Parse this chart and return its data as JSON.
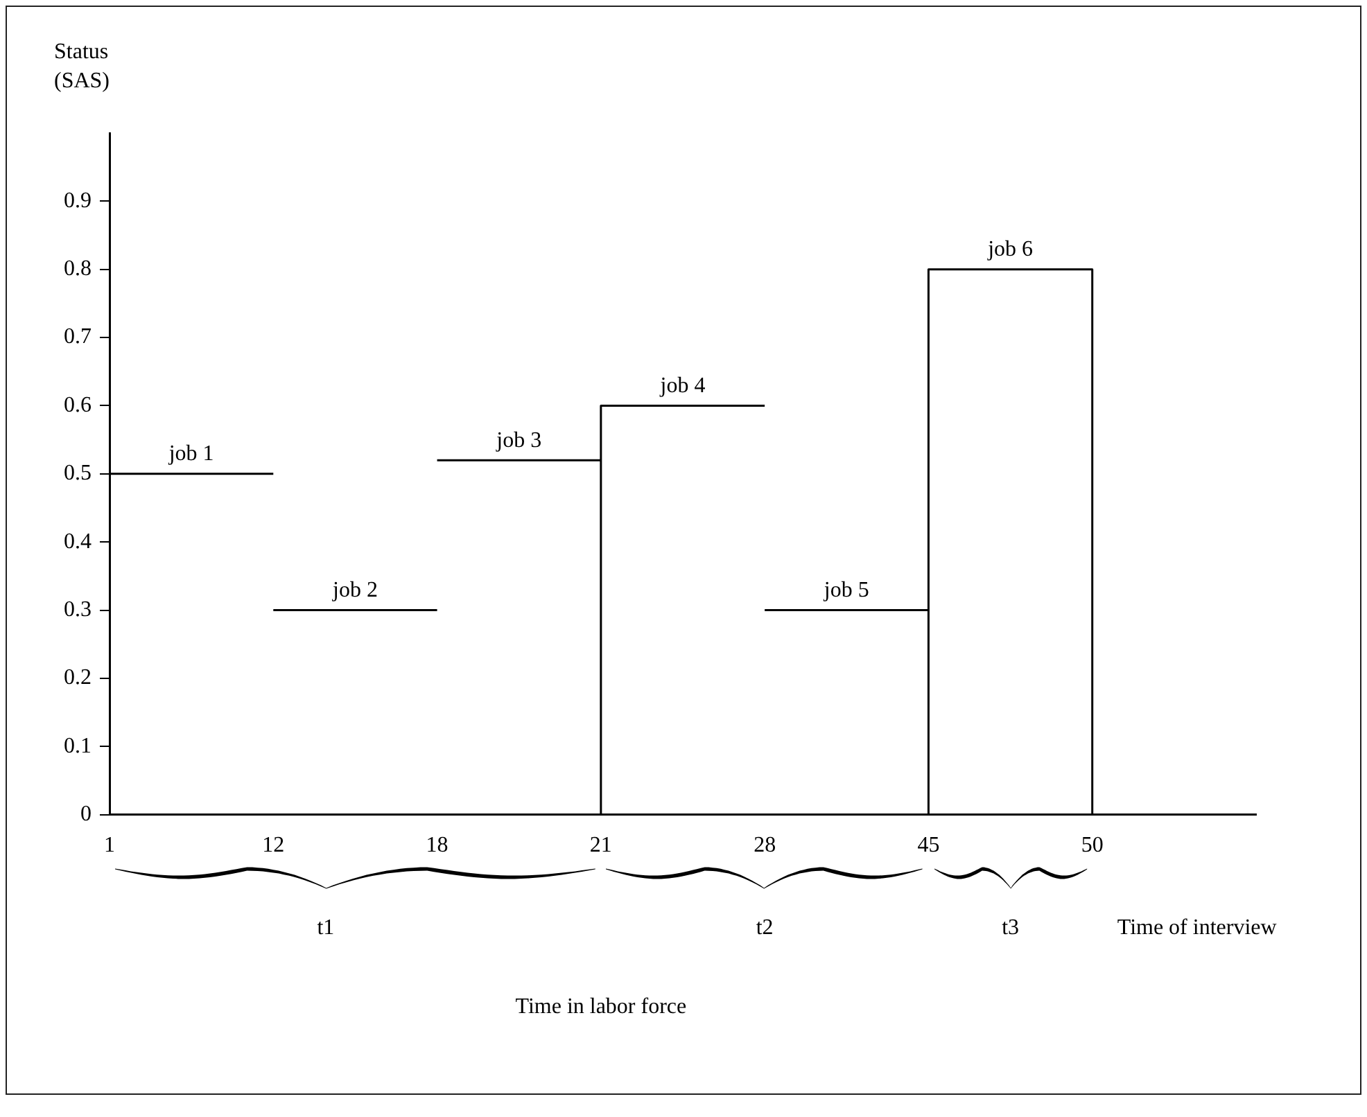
{
  "chart_data": {
    "type": "line",
    "ylabel": "Status\n(SAS)",
    "categories": [
      "1",
      "12",
      "18",
      "21",
      "28",
      "45",
      "50",
      null
    ],
    "ylim": [
      0,
      1
    ],
    "yticks": [
      0,
      0.1,
      0.2,
      0.3,
      0.4,
      0.5,
      0.6,
      0.7,
      0.8,
      0.9
    ],
    "grid": false,
    "legend": false,
    "marker": "none",
    "line_style": "solid",
    "series": [
      {
        "name": "job 1",
        "color": "#000000",
        "x": [
          "1",
          "12"
        ],
        "values": [
          0.5,
          0.5
        ]
      },
      {
        "name": "job 2",
        "color": "#000000",
        "x": [
          "12",
          "18"
        ],
        "values": [
          0.3,
          0.3
        ]
      },
      {
        "name": "job 3",
        "color": "#000000",
        "x": [
          "18",
          "21"
        ],
        "values": [
          0.52,
          0.52
        ]
      },
      {
        "name": "job 4",
        "color": "#000000",
        "x": [
          "21",
          "21",
          "28"
        ],
        "values": [
          0,
          0.6,
          0.6
        ]
      },
      {
        "name": "job 5",
        "color": "#000000",
        "x": [
          "28",
          "45"
        ],
        "values": [
          0.3,
          0.3
        ]
      },
      {
        "name": "job 6",
        "color": "#000000",
        "x": [
          "45",
          "45",
          "50",
          "50"
        ],
        "values": [
          0,
          0.8,
          0.8,
          0
        ]
      }
    ],
    "annotations": [
      "t1",
      "t2",
      "t3",
      "Time of interview",
      "Time in labor force"
    ]
  }
}
